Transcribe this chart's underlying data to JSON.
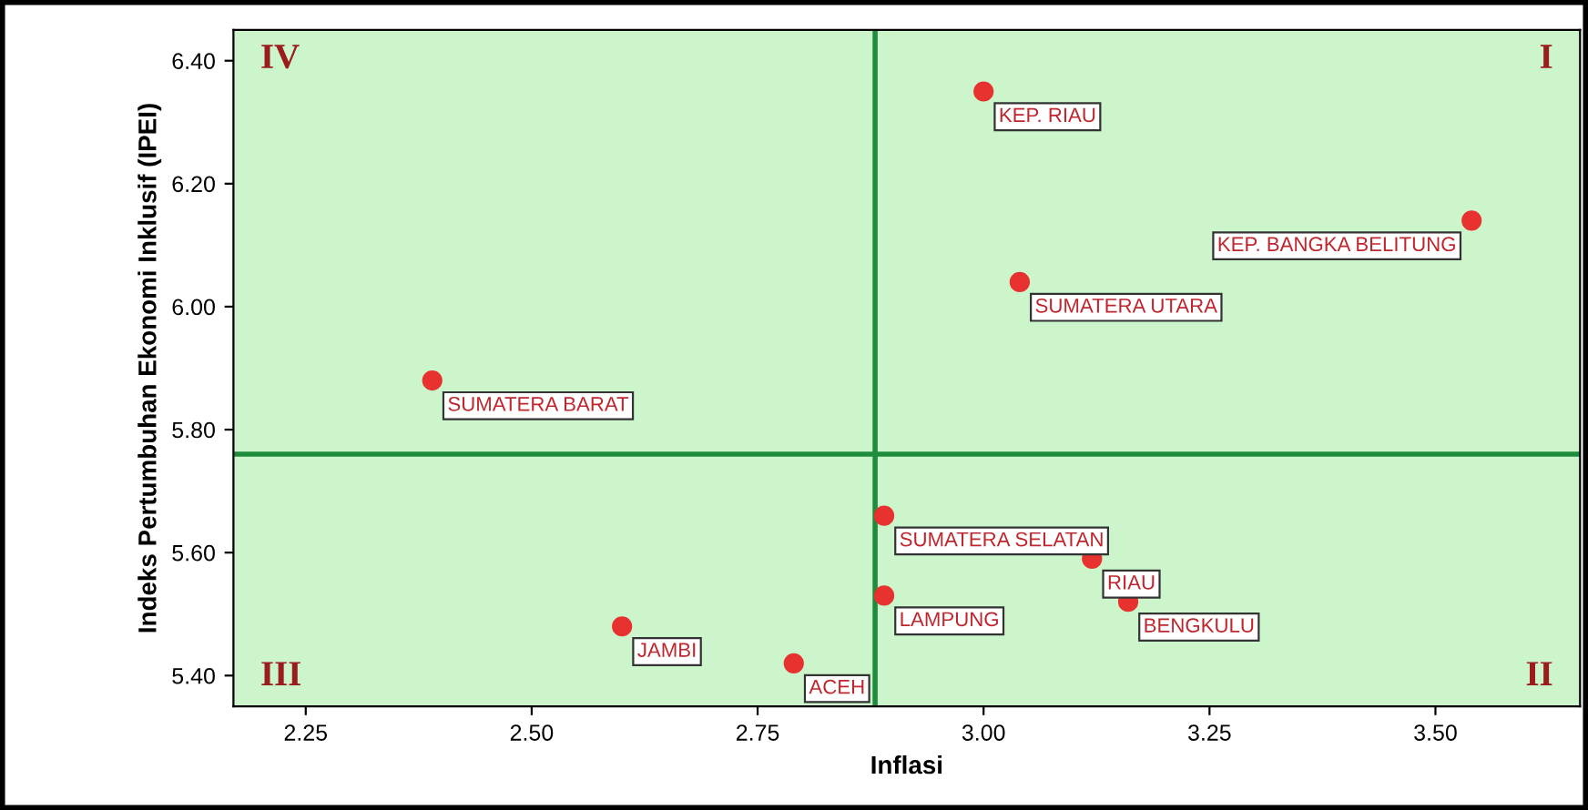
{
  "chart_data": {
    "type": "scatter",
    "xlabel": "Inflasi",
    "ylabel": "Indeks Pertumbuhan Ekonomi Inklusif (IPEI)",
    "x": [
      3.0,
      3.54,
      3.04,
      2.39,
      2.89,
      3.12,
      2.89,
      3.16,
      2.6,
      2.79
    ],
    "values": [
      6.35,
      6.14,
      6.04,
      5.88,
      5.66,
      5.59,
      5.53,
      5.52,
      5.48,
      5.42
    ],
    "color": "#e8322f",
    "marker": "circle",
    "annotations": [
      "IV",
      "I",
      "III",
      "II",
      {
        "text": "KEP. RIAU",
        "x": 3.0,
        "y": 6.35
      },
      {
        "text": "KEP. BANGKA BELITUNG",
        "x": 3.54,
        "y": 6.14
      },
      {
        "text": "SUMATERA UTARA",
        "x": 3.04,
        "y": 6.04
      },
      {
        "text": "SUMATERA BARAT",
        "x": 2.39,
        "y": 5.88
      },
      {
        "text": "SUMATERA SELATAN",
        "x": 2.89,
        "y": 5.66
      },
      {
        "text": "RIAU",
        "x": 3.12,
        "y": 5.59
      },
      {
        "text": "LAMPUNG",
        "x": 2.89,
        "y": 5.53
      },
      {
        "text": "BENGKULU",
        "x": 3.16,
        "y": 5.52
      },
      {
        "text": "JAMBI",
        "x": 2.6,
        "y": 5.48
      },
      {
        "text": "ACEH",
        "x": 2.79,
        "y": 5.42
      }
    ],
    "ref_lines": [
      {
        "axis": "x",
        "value": 2.88,
        "color": "#1e8c3c"
      },
      {
        "axis": "y",
        "value": 5.76,
        "color": "#1e8c3c"
      }
    ],
    "xlim": [
      2.17,
      3.66
    ],
    "ylim": [
      5.35,
      6.45
    ],
    "xticks": [
      {
        "value": 2.25,
        "label": "2.25"
      },
      {
        "value": 2.5,
        "label": "2.50"
      },
      {
        "value": 2.75,
        "label": "2.75"
      },
      {
        "value": 3.0,
        "label": "3.00"
      },
      {
        "value": 3.25,
        "label": "3.25"
      },
      {
        "value": 3.5,
        "label": "3.50"
      }
    ],
    "yticks": [
      {
        "value": 5.4,
        "label": "5.40"
      },
      {
        "value": 5.6,
        "label": "5.60"
      },
      {
        "value": 5.8,
        "label": "5.80"
      },
      {
        "value": 6.0,
        "label": "6.00"
      },
      {
        "value": 6.2,
        "label": "6.20"
      },
      {
        "value": 6.4,
        "label": "6.40"
      }
    ],
    "grid": false,
    "legend": false
  }
}
